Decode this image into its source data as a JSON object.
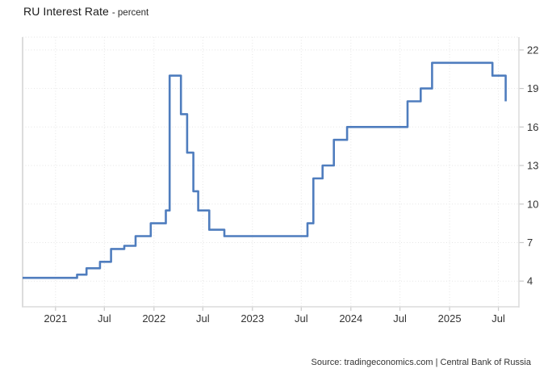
{
  "header": {
    "title": "RU Interest Rate",
    "subtitle": "- percent"
  },
  "footer": {
    "source": "Source: tradingeconomics.com | Central Bank of Russia"
  },
  "colors": {
    "line": "#4f7dbe",
    "grid": "#e5e5e5",
    "axis": "#dcdcdc",
    "tick": "#c9c9c9",
    "label": "#333333",
    "title": "#1a1a1a",
    "source": "#333333",
    "background": "#ffffff"
  },
  "chart_data": {
    "type": "line",
    "step": "after",
    "title": "RU Interest Rate",
    "ylabel": "percent",
    "legend": "none",
    "grid": "dotted",
    "x_domain": [
      "2020-09-01",
      "2025-09-15"
    ],
    "ylim": [
      2,
      23
    ],
    "yticks": [
      4,
      7,
      10,
      13,
      16,
      19,
      22
    ],
    "xticks": [
      {
        "date": "2021-01-01",
        "label": "2021"
      },
      {
        "date": "2021-07-01",
        "label": "Jul"
      },
      {
        "date": "2022-01-01",
        "label": "2022"
      },
      {
        "date": "2022-07-01",
        "label": "Jul"
      },
      {
        "date": "2023-01-01",
        "label": "2023"
      },
      {
        "date": "2023-07-01",
        "label": "Jul"
      },
      {
        "date": "2024-01-01",
        "label": "2024"
      },
      {
        "date": "2024-07-01",
        "label": "Jul"
      },
      {
        "date": "2025-01-01",
        "label": "2025"
      },
      {
        "date": "2025-07-01",
        "label": "Jul"
      }
    ],
    "series": [
      {
        "name": "RU Interest Rate (percent)",
        "points": [
          [
            "2020-09-01",
            4.25
          ],
          [
            "2021-03-22",
            4.5
          ],
          [
            "2021-04-26",
            5.0
          ],
          [
            "2021-06-15",
            5.5
          ],
          [
            "2021-07-26",
            6.5
          ],
          [
            "2021-09-13",
            6.75
          ],
          [
            "2021-10-25",
            7.5
          ],
          [
            "2021-12-20",
            8.5
          ],
          [
            "2022-02-14",
            9.5
          ],
          [
            "2022-02-28",
            20.0
          ],
          [
            "2022-04-11",
            17.0
          ],
          [
            "2022-05-04",
            14.0
          ],
          [
            "2022-05-27",
            11.0
          ],
          [
            "2022-06-14",
            9.5
          ],
          [
            "2022-07-25",
            8.0
          ],
          [
            "2022-09-19",
            7.5
          ],
          [
            "2023-07-24",
            8.5
          ],
          [
            "2023-08-15",
            12.0
          ],
          [
            "2023-09-18",
            13.0
          ],
          [
            "2023-10-30",
            15.0
          ],
          [
            "2023-12-18",
            16.0
          ],
          [
            "2024-07-29",
            18.0
          ],
          [
            "2024-09-16",
            19.0
          ],
          [
            "2024-10-28",
            21.0
          ],
          [
            "2025-06-09",
            20.0
          ],
          [
            "2025-07-28",
            18.0
          ]
        ]
      }
    ]
  }
}
